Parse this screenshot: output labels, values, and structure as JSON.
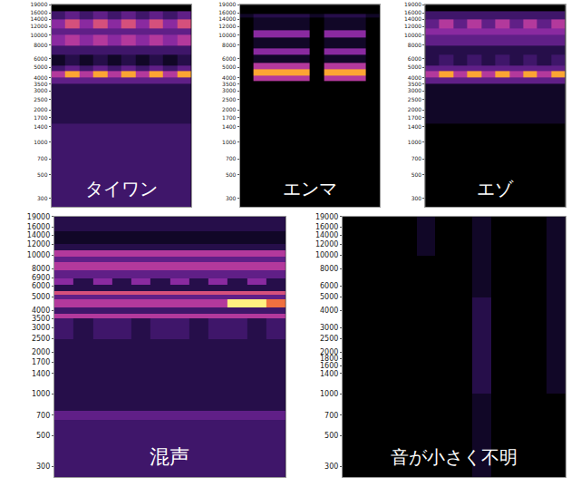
{
  "chart_data": [
    {
      "type": "heatmap",
      "title": "タイワン",
      "log": "y",
      "tick_labels": "y",
      "ylim": [
        250,
        19000
      ],
      "yticks": [
        300,
        500,
        700,
        1000,
        1400,
        1700,
        2000,
        2500,
        3000,
        3500,
        4000,
        5000,
        6000,
        8000,
        10000,
        12000,
        14000,
        16000,
        19000
      ],
      "zlim": [
        0,
        10
      ],
      "y_edges": [
        250,
        1500,
        3500,
        4000,
        4600,
        5200,
        6500,
        8000,
        10000,
        11500,
        14000,
        16500,
        19000
      ],
      "z": [
        [
          3,
          3,
          3,
          3,
          3,
          3,
          3,
          3,
          3,
          3
        ],
        [
          2,
          2,
          2,
          2,
          2,
          2,
          2,
          2,
          2,
          2
        ],
        [
          4,
          4,
          4,
          4,
          4,
          4,
          4,
          4,
          4,
          4
        ],
        [
          6,
          9,
          6,
          9,
          6,
          9,
          6,
          9,
          6,
          9
        ],
        [
          3,
          4,
          3,
          4,
          3,
          4,
          3,
          4,
          3,
          4
        ],
        [
          1,
          2,
          1,
          2,
          1,
          2,
          1,
          2,
          1,
          2
        ],
        [
          3,
          3,
          3,
          3,
          3,
          3,
          3,
          3,
          3,
          3
        ],
        [
          5,
          6,
          5,
          6,
          5,
          6,
          5,
          6,
          5,
          6
        ],
        [
          4,
          4,
          4,
          4,
          4,
          4,
          4,
          4,
          4,
          4
        ],
        [
          5,
          7,
          5,
          7,
          5,
          7,
          5,
          7,
          5,
          7
        ],
        [
          3,
          4,
          3,
          4,
          3,
          4,
          3,
          4,
          3,
          4
        ],
        [
          0,
          0,
          0,
          0,
          0,
          0,
          0,
          0,
          0,
          0
        ]
      ]
    },
    {
      "type": "heatmap",
      "title": "エンマ",
      "log": "y",
      "tick_labels": "y",
      "ylim": [
        250,
        19000
      ],
      "yticks": [
        300,
        500,
        700,
        1000,
        1400,
        1700,
        2000,
        2500,
        3000,
        3500,
        4000,
        5000,
        6000,
        8000,
        10000,
        12000,
        14000,
        16000,
        19000
      ],
      "zlim": [
        0,
        10
      ],
      "y_edges": [
        250,
        3700,
        4200,
        4800,
        5500,
        6500,
        7500,
        9500,
        11000,
        14500,
        15500,
        19000
      ],
      "z": [
        [
          0,
          0,
          0,
          0,
          0,
          0,
          0,
          0,
          0,
          0
        ],
        [
          0,
          6,
          6,
          6,
          6,
          0,
          6,
          6,
          6,
          0
        ],
        [
          0,
          9,
          9,
          9,
          9,
          0,
          9,
          9,
          9,
          0
        ],
        [
          0,
          6,
          6,
          6,
          6,
          0,
          6,
          6,
          6,
          0
        ],
        [
          0,
          1,
          1,
          1,
          1,
          0,
          1,
          1,
          1,
          0
        ],
        [
          0,
          5,
          5,
          5,
          5,
          0,
          5,
          5,
          5,
          0
        ],
        [
          0,
          1,
          1,
          1,
          1,
          0,
          1,
          1,
          1,
          0
        ],
        [
          0,
          5,
          5,
          5,
          5,
          0,
          5,
          5,
          5,
          0
        ],
        [
          0,
          1,
          1,
          1,
          1,
          0,
          1,
          1,
          1,
          0
        ],
        [
          1,
          2,
          2,
          2,
          2,
          1,
          2,
          2,
          2,
          1
        ],
        [
          0,
          0,
          0,
          0,
          0,
          0,
          0,
          0,
          0,
          0
        ]
      ]
    },
    {
      "type": "heatmap",
      "title": "エゾ",
      "log": "y",
      "tick_labels": "y",
      "ylim": [
        250,
        19000
      ],
      "yticks": [
        300,
        500,
        700,
        1000,
        1400,
        1700,
        2000,
        2500,
        3000,
        3500,
        4000,
        5000,
        6000,
        8000,
        10000,
        12000,
        14000,
        16000,
        19000
      ],
      "zlim": [
        0,
        10
      ],
      "y_edges": [
        250,
        1500,
        3500,
        4000,
        4600,
        5200,
        6500,
        8000,
        10000,
        11500,
        14000,
        16500,
        19000
      ],
      "z": [
        [
          0,
          0,
          0,
          0,
          0,
          0,
          0,
          0,
          0,
          0
        ],
        [
          1,
          1,
          1,
          1,
          1,
          1,
          1,
          1,
          1,
          1
        ],
        [
          4,
          4,
          4,
          4,
          4,
          4,
          4,
          4,
          4,
          4
        ],
        [
          6,
          9,
          6,
          9,
          6,
          9,
          6,
          9,
          6,
          9
        ],
        [
          4,
          4,
          4,
          4,
          4,
          4,
          4,
          4,
          4,
          4
        ],
        [
          2,
          3,
          2,
          3,
          2,
          3,
          2,
          3,
          2,
          3
        ],
        [
          2,
          2,
          2,
          2,
          2,
          2,
          2,
          2,
          2,
          2
        ],
        [
          4,
          4,
          4,
          4,
          4,
          4,
          4,
          4,
          4,
          4
        ],
        [
          5,
          5,
          5,
          5,
          5,
          5,
          5,
          5,
          5,
          5
        ],
        [
          4,
          6,
          4,
          6,
          4,
          6,
          4,
          6,
          4,
          6
        ],
        [
          3,
          3,
          3,
          3,
          3,
          3,
          3,
          3,
          3,
          3
        ],
        [
          0,
          0,
          0,
          0,
          0,
          0,
          0,
          0,
          0,
          0
        ]
      ]
    },
    {
      "type": "heatmap",
      "title": "混声",
      "log": "y",
      "tick_labels": "y",
      "ylim": [
        250,
        19000
      ],
      "yticks": [
        300,
        500,
        700,
        1000,
        1400,
        1700,
        2000,
        2500,
        3000,
        3500,
        4000,
        5000,
        6000,
        6900,
        8000,
        10000,
        12000,
        14000,
        16000,
        19000
      ],
      "zlim": [
        0,
        10
      ],
      "y_edges": [
        250,
        650,
        750,
        2500,
        3500,
        3800,
        4200,
        4800,
        5200,
        5500,
        6100,
        6800,
        7800,
        8900,
        9800,
        10800,
        12000,
        15000,
        19000
      ],
      "z": [
        [
          3,
          3,
          3,
          3,
          3,
          3,
          3,
          3,
          3,
          3,
          3,
          3
        ],
        [
          4,
          4,
          4,
          4,
          4,
          4,
          4,
          4,
          4,
          4,
          4,
          4
        ],
        [
          2,
          2,
          2,
          2,
          2,
          2,
          2,
          2,
          2,
          2,
          2,
          2
        ],
        [
          3,
          2,
          3,
          3,
          2,
          3,
          3,
          2,
          3,
          3,
          2,
          3
        ],
        [
          6,
          6,
          6,
          6,
          6,
          6,
          6,
          6,
          6,
          6,
          6,
          6
        ],
        [
          3,
          3,
          3,
          3,
          3,
          3,
          3,
          3,
          3,
          3,
          3,
          3
        ],
        [
          6,
          6,
          6,
          6,
          6,
          6,
          6,
          6,
          6,
          10,
          10,
          8
        ],
        [
          4,
          4,
          4,
          4,
          4,
          4,
          4,
          4,
          4,
          4,
          4,
          4
        ],
        [
          7,
          7,
          7,
          7,
          7,
          7,
          7,
          7,
          7,
          7,
          7,
          7
        ],
        [
          2,
          2,
          2,
          2,
          2,
          2,
          2,
          2,
          2,
          2,
          2,
          2
        ],
        [
          5,
          2,
          5,
          2,
          5,
          2,
          5,
          2,
          5,
          2,
          5,
          2
        ],
        [
          4,
          4,
          4,
          4,
          4,
          4,
          4,
          4,
          4,
          4,
          4,
          4
        ],
        [
          6,
          6,
          6,
          6,
          6,
          6,
          6,
          6,
          6,
          6,
          6,
          6
        ],
        [
          4,
          4,
          4,
          4,
          4,
          4,
          4,
          4,
          4,
          4,
          4,
          4
        ],
        [
          6,
          6,
          6,
          6,
          6,
          6,
          6,
          6,
          6,
          6,
          6,
          6
        ],
        [
          2,
          2,
          2,
          2,
          2,
          2,
          2,
          2,
          2,
          2,
          2,
          2
        ],
        [
          1,
          1,
          1,
          1,
          1,
          1,
          1,
          1,
          1,
          1,
          1,
          1
        ],
        [
          2,
          2,
          2,
          2,
          2,
          2,
          2,
          2,
          2,
          2,
          2,
          2
        ]
      ]
    },
    {
      "type": "heatmap",
      "title": "音が小さく不明",
      "log": "y",
      "tick_labels": "y",
      "ylim": [
        250,
        19000
      ],
      "yticks": [
        300,
        500,
        700,
        1000,
        1400,
        1600,
        1800,
        2000,
        2500,
        3000,
        4000,
        5000,
        6000,
        8000,
        10000,
        12000,
        14000,
        16000,
        19000
      ],
      "zlim": [
        0,
        10
      ],
      "y_edges": [
        250,
        1000,
        5000,
        10000,
        19000
      ],
      "z": [
        [
          0,
          0,
          0,
          0,
          0,
          0,
          0,
          1,
          0,
          0,
          0,
          0
        ],
        [
          0,
          0,
          0,
          0,
          0,
          0,
          0,
          2,
          0,
          0,
          0,
          1
        ],
        [
          0,
          0,
          0,
          0,
          0,
          0,
          0,
          1,
          0,
          0,
          0,
          1
        ],
        [
          0,
          0,
          0,
          0,
          1,
          0,
          0,
          1,
          0,
          0,
          0,
          1
        ]
      ]
    }
  ]
}
